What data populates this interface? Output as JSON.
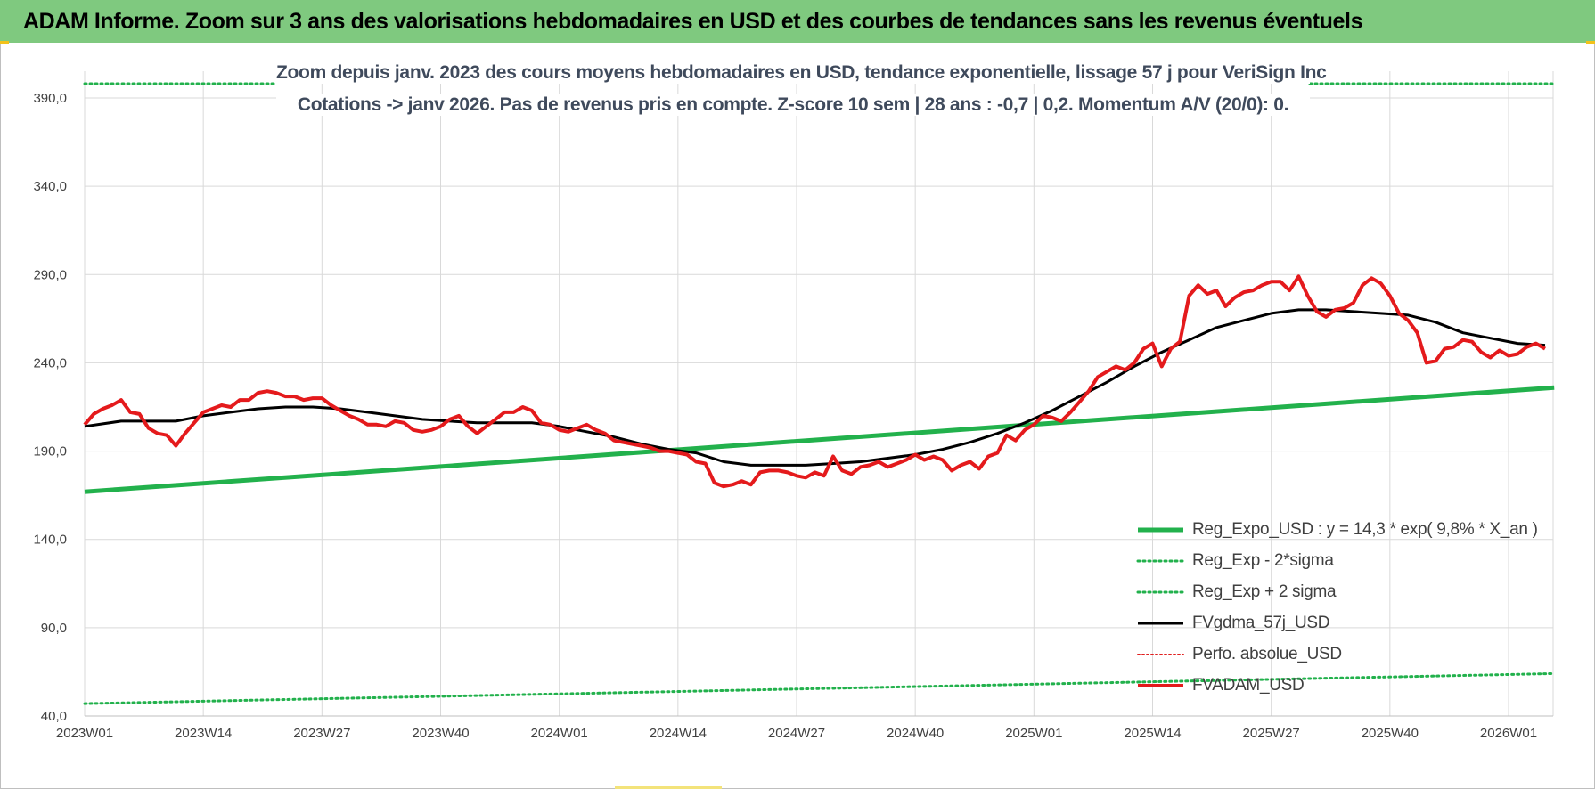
{
  "header": {
    "title": "ADAM Informe. Zoom sur 3 ans des valorisations hebdomadaires en USD et des courbes de tendances sans les revenus éventuels"
  },
  "chart_data": {
    "type": "line",
    "title_line1": "Zoom depuis janv. 2023 des cours moyens hebdomadaires en USD, tendance exponentielle, lissage 57 j pour VeriSign Inc",
    "title_line2": "Cotations -> janv 2026. Pas de revenus pris en compte. Z-score 10 sem | 28 ans : -0,7 | 0,2. Momentum A/V (20/0): 0.",
    "ylim": [
      40,
      400
    ],
    "y_ticks": [
      "40,0",
      "90,0",
      "140,0",
      "190,0",
      "240,0",
      "290,0",
      "340,0",
      "390,0"
    ],
    "y_tick_values": [
      40,
      90,
      140,
      190,
      240,
      290,
      340,
      390
    ],
    "x_ticks": [
      "2023W01",
      "2023W14",
      "2023W27",
      "2023W40",
      "2024W01",
      "2024W14",
      "2024W27",
      "2024W40",
      "2025W01",
      "2025W14",
      "2025W27",
      "2025W40",
      "2026W01"
    ],
    "x_tick_weeks": [
      0,
      13,
      26,
      39,
      52,
      65,
      78,
      91,
      104,
      117,
      130,
      143,
      156
    ],
    "x_range_weeks": [
      0,
      161
    ],
    "colors": {
      "reg_expo": "#22b14c",
      "sigma": "#22b14c",
      "fvgdma": "#000000",
      "perfo": "#e02020",
      "fvadam": "#e41a1c",
      "grid": "#d9d9d9"
    },
    "series": [
      {
        "name": "Reg_Expo_USD : y = 14,3 * exp( 9,8% *  X_an )",
        "key": "reg_expo",
        "style": "solid-thick",
        "points": [
          [
            0,
            167
          ],
          [
            161,
            226
          ]
        ]
      },
      {
        "name": "Reg_Exp - 2*sigma",
        "key": "sigma_minus",
        "style": "dotted",
        "points": [
          [
            0,
            47
          ],
          [
            161,
            64
          ]
        ]
      },
      {
        "name": "Reg_Exp + 2 sigma",
        "key": "sigma_plus",
        "style": "dotted",
        "points": [
          [
            0,
            401
          ],
          [
            161,
            401
          ]
        ]
      },
      {
        "name": "FVgdma_57j_USD",
        "key": "fvgdma",
        "style": "solid",
        "points": [
          [
            0,
            204
          ],
          [
            4,
            207
          ],
          [
            7,
            207
          ],
          [
            10,
            207
          ],
          [
            13,
            210
          ],
          [
            16,
            212
          ],
          [
            19,
            214
          ],
          [
            22,
            215
          ],
          [
            25,
            215
          ],
          [
            28,
            214
          ],
          [
            31,
            212
          ],
          [
            34,
            210
          ],
          [
            37,
            208
          ],
          [
            40,
            207
          ],
          [
            43,
            206
          ],
          [
            46,
            206
          ],
          [
            49,
            206
          ],
          [
            52,
            204
          ],
          [
            55,
            201
          ],
          [
            58,
            198
          ],
          [
            61,
            194
          ],
          [
            64,
            191
          ],
          [
            67,
            189
          ],
          [
            70,
            184
          ],
          [
            73,
            182
          ],
          [
            76,
            182
          ],
          [
            79,
            182
          ],
          [
            82,
            183
          ],
          [
            85,
            184
          ],
          [
            88,
            186
          ],
          [
            91,
            188
          ],
          [
            94,
            191
          ],
          [
            97,
            195
          ],
          [
            100,
            200
          ],
          [
            103,
            206
          ],
          [
            106,
            213
          ],
          [
            109,
            221
          ],
          [
            112,
            229
          ],
          [
            115,
            238
          ],
          [
            118,
            246
          ],
          [
            121,
            253
          ],
          [
            124,
            260
          ],
          [
            127,
            264
          ],
          [
            130,
            268
          ],
          [
            133,
            270
          ],
          [
            136,
            270
          ],
          [
            139,
            269
          ],
          [
            142,
            268
          ],
          [
            145,
            267
          ],
          [
            148,
            263
          ],
          [
            151,
            257
          ],
          [
            154,
            254
          ],
          [
            157,
            251
          ],
          [
            160,
            250
          ]
        ]
      },
      {
        "name": "Perfo. absolue_USD",
        "key": "perfo",
        "style": "dotted",
        "points": []
      },
      {
        "name": "FVADAM_USD",
        "key": "fvadam",
        "style": "solid-thick",
        "points": [
          [
            0,
            205
          ],
          [
            1,
            211
          ],
          [
            2,
            214
          ],
          [
            3,
            216
          ],
          [
            4,
            219
          ],
          [
            5,
            212
          ],
          [
            6,
            211
          ],
          [
            7,
            203
          ],
          [
            8,
            200
          ],
          [
            9,
            199
          ],
          [
            10,
            193
          ],
          [
            11,
            200
          ],
          [
            12,
            206
          ],
          [
            13,
            212
          ],
          [
            14,
            214
          ],
          [
            15,
            216
          ],
          [
            16,
            215
          ],
          [
            17,
            219
          ],
          [
            18,
            219
          ],
          [
            19,
            223
          ],
          [
            20,
            224
          ],
          [
            21,
            223
          ],
          [
            22,
            221
          ],
          [
            23,
            221
          ],
          [
            24,
            219
          ],
          [
            25,
            220
          ],
          [
            26,
            220
          ],
          [
            27,
            216
          ],
          [
            28,
            213
          ],
          [
            29,
            210
          ],
          [
            30,
            208
          ],
          [
            31,
            205
          ],
          [
            32,
            205
          ],
          [
            33,
            204
          ],
          [
            34,
            207
          ],
          [
            35,
            206
          ],
          [
            36,
            202
          ],
          [
            37,
            201
          ],
          [
            38,
            202
          ],
          [
            39,
            204
          ],
          [
            40,
            208
          ],
          [
            41,
            210
          ],
          [
            42,
            204
          ],
          [
            43,
            200
          ],
          [
            44,
            204
          ],
          [
            45,
            208
          ],
          [
            46,
            212
          ],
          [
            47,
            212
          ],
          [
            48,
            215
          ],
          [
            49,
            213
          ],
          [
            50,
            206
          ],
          [
            51,
            205
          ],
          [
            52,
            202
          ],
          [
            53,
            201
          ],
          [
            54,
            203
          ],
          [
            55,
            205
          ],
          [
            56,
            202
          ],
          [
            57,
            200
          ],
          [
            58,
            196
          ],
          [
            59,
            195
          ],
          [
            60,
            194
          ],
          [
            61,
            193
          ],
          [
            62,
            192
          ],
          [
            63,
            190
          ],
          [
            64,
            190
          ],
          [
            65,
            189
          ],
          [
            66,
            188
          ],
          [
            67,
            184
          ],
          [
            68,
            183
          ],
          [
            69,
            172
          ],
          [
            70,
            170
          ],
          [
            71,
            171
          ],
          [
            72,
            173
          ],
          [
            73,
            171
          ],
          [
            74,
            178
          ],
          [
            75,
            179
          ],
          [
            76,
            179
          ],
          [
            77,
            178
          ],
          [
            78,
            176
          ],
          [
            79,
            175
          ],
          [
            80,
            178
          ],
          [
            81,
            176
          ],
          [
            82,
            187
          ],
          [
            83,
            179
          ],
          [
            84,
            177
          ],
          [
            85,
            181
          ],
          [
            86,
            182
          ],
          [
            87,
            184
          ],
          [
            88,
            181
          ],
          [
            89,
            183
          ],
          [
            90,
            185
          ],
          [
            91,
            188
          ],
          [
            92,
            185
          ],
          [
            93,
            187
          ],
          [
            94,
            185
          ],
          [
            95,
            179
          ],
          [
            96,
            182
          ],
          [
            97,
            184
          ],
          [
            98,
            180
          ],
          [
            99,
            187
          ],
          [
            100,
            189
          ],
          [
            101,
            199
          ],
          [
            102,
            196
          ],
          [
            103,
            202
          ],
          [
            104,
            205
          ],
          [
            105,
            210
          ],
          [
            106,
            209
          ],
          [
            107,
            207
          ],
          [
            108,
            212
          ],
          [
            109,
            218
          ],
          [
            110,
            224
          ],
          [
            111,
            232
          ],
          [
            112,
            235
          ],
          [
            113,
            238
          ],
          [
            114,
            236
          ],
          [
            115,
            240
          ],
          [
            116,
            248
          ],
          [
            117,
            251
          ],
          [
            118,
            238
          ],
          [
            119,
            248
          ],
          [
            120,
            252
          ],
          [
            121,
            278
          ],
          [
            122,
            284
          ],
          [
            123,
            279
          ],
          [
            124,
            281
          ],
          [
            125,
            272
          ],
          [
            126,
            277
          ],
          [
            127,
            280
          ],
          [
            128,
            281
          ],
          [
            129,
            284
          ],
          [
            130,
            286
          ],
          [
            131,
            286
          ],
          [
            132,
            281
          ],
          [
            133,
            289
          ],
          [
            134,
            278
          ],
          [
            135,
            269
          ],
          [
            136,
            266
          ],
          [
            137,
            270
          ],
          [
            138,
            271
          ],
          [
            139,
            274
          ],
          [
            140,
            284
          ],
          [
            141,
            288
          ],
          [
            142,
            285
          ],
          [
            143,
            278
          ],
          [
            144,
            268
          ],
          [
            145,
            264
          ],
          [
            146,
            257
          ],
          [
            147,
            240
          ],
          [
            148,
            241
          ],
          [
            149,
            248
          ],
          [
            150,
            249
          ],
          [
            151,
            253
          ],
          [
            152,
            252
          ],
          [
            153,
            246
          ],
          [
            154,
            243
          ],
          [
            155,
            247
          ],
          [
            156,
            244
          ],
          [
            157,
            245
          ],
          [
            158,
            249
          ],
          [
            159,
            251
          ],
          [
            160,
            248
          ]
        ]
      }
    ]
  }
}
